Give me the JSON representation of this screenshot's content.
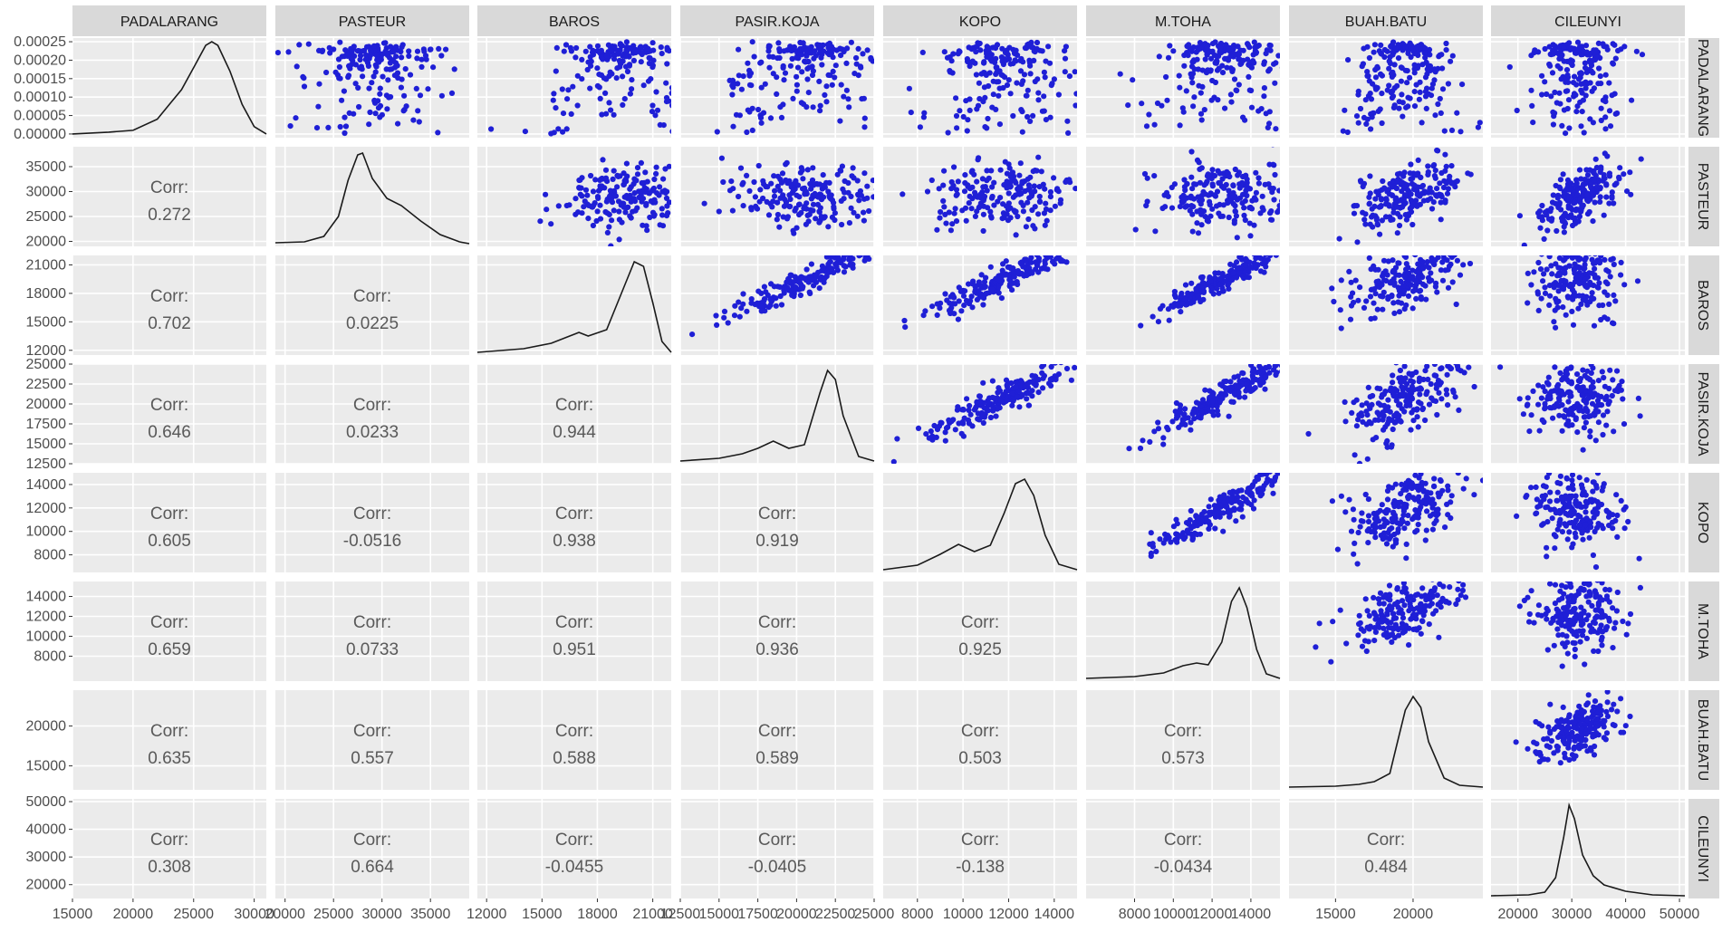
{
  "chart_data": {
    "type": "scatter",
    "variables": [
      "PADALARANG",
      "PASTEUR",
      "BAROS",
      "PASIR.KOJA",
      "KOPO",
      "M.TOHA",
      "BUAH.BATU",
      "CILEUNYI"
    ],
    "panel_types": {
      "diagonal": "density",
      "upper": "scatter",
      "lower": "correlation"
    },
    "corr_label": "Corr:",
    "correlations": [
      {
        "row": "PASTEUR",
        "col": "PADALARANG",
        "value": "0.272"
      },
      {
        "row": "BAROS",
        "col": "PADALARANG",
        "value": "0.702"
      },
      {
        "row": "BAROS",
        "col": "PASTEUR",
        "value": "0.0225"
      },
      {
        "row": "PASIR.KOJA",
        "col": "PADALARANG",
        "value": "0.646"
      },
      {
        "row": "PASIR.KOJA",
        "col": "PASTEUR",
        "value": "0.0233"
      },
      {
        "row": "PASIR.KOJA",
        "col": "BAROS",
        "value": "0.944"
      },
      {
        "row": "KOPO",
        "col": "PADALARANG",
        "value": "0.605"
      },
      {
        "row": "KOPO",
        "col": "PASTEUR",
        "value": "-0.0516"
      },
      {
        "row": "KOPO",
        "col": "BAROS",
        "value": "0.938"
      },
      {
        "row": "KOPO",
        "col": "PASIR.KOJA",
        "value": "0.919"
      },
      {
        "row": "M.TOHA",
        "col": "PADALARANG",
        "value": "0.659"
      },
      {
        "row": "M.TOHA",
        "col": "PASTEUR",
        "value": "0.0733"
      },
      {
        "row": "M.TOHA",
        "col": "BAROS",
        "value": "0.951"
      },
      {
        "row": "M.TOHA",
        "col": "PASIR.KOJA",
        "value": "0.936"
      },
      {
        "row": "M.TOHA",
        "col": "KOPO",
        "value": "0.925"
      },
      {
        "row": "BUAH.BATU",
        "col": "PADALARANG",
        "value": "0.635"
      },
      {
        "row": "BUAH.BATU",
        "col": "PASTEUR",
        "value": "0.557"
      },
      {
        "row": "BUAH.BATU",
        "col": "BAROS",
        "value": "0.588"
      },
      {
        "row": "BUAH.BATU",
        "col": "PASIR.KOJA",
        "value": "0.589"
      },
      {
        "row": "BUAH.BATU",
        "col": "KOPO",
        "value": "0.503"
      },
      {
        "row": "BUAH.BATU",
        "col": "M.TOHA",
        "value": "0.573"
      },
      {
        "row": "CILEUNYI",
        "col": "PADALARANG",
        "value": "0.308"
      },
      {
        "row": "CILEUNYI",
        "col": "PASTEUR",
        "value": "0.664"
      },
      {
        "row": "CILEUNYI",
        "col": "BAROS",
        "value": "-0.0455"
      },
      {
        "row": "CILEUNYI",
        "col": "PASIR.KOJA",
        "value": "-0.0405"
      },
      {
        "row": "CILEUNYI",
        "col": "KOPO",
        "value": "-0.138"
      },
      {
        "row": "CILEUNYI",
        "col": "M.TOHA",
        "value": "-0.0434"
      },
      {
        "row": "CILEUNYI",
        "col": "BUAH.BATU",
        "value": "0.484"
      }
    ],
    "x_axes": [
      {
        "variable": "PADALARANG",
        "range": [
          15000,
          31000
        ],
        "ticks": [
          "15000",
          "20000",
          "25000",
          "30000"
        ]
      },
      {
        "variable": "PASTEUR",
        "range": [
          19000,
          39000
        ],
        "ticks": [
          "20000",
          "25000",
          "30000",
          "35000"
        ]
      },
      {
        "variable": "BAROS",
        "range": [
          11500,
          22000
        ],
        "ticks": [
          "12000",
          "15000",
          "18000",
          "21000"
        ]
      },
      {
        "variable": "PASIR.KOJA",
        "range": [
          12500,
          25000
        ],
        "ticks": [
          "12500",
          "15000",
          "17500",
          "20000",
          "22500",
          "25000"
        ]
      },
      {
        "variable": "KOPO",
        "range": [
          6500,
          15000
        ],
        "ticks": [
          "8000",
          "10000",
          "12000",
          "14000"
        ]
      },
      {
        "variable": "M.TOHA",
        "range": [
          5500,
          15500
        ],
        "ticks": [
          "8000",
          "10000",
          "12000",
          "14000"
        ]
      },
      {
        "variable": "BUAH.BATU",
        "range": [
          12000,
          24500
        ],
        "ticks": [
          "15000",
          "20000"
        ]
      },
      {
        "variable": "CILEUNYI",
        "range": [
          15000,
          51000
        ],
        "ticks": [
          "20000",
          "30000",
          "40000",
          "50000"
        ]
      }
    ],
    "y_axes": [
      {
        "variable": "PADALARANG",
        "range": [
          -1e-05,
          0.00026
        ],
        "ticks": [
          "0.00000",
          "0.00005",
          "0.00010",
          "0.00015",
          "0.00020",
          "0.00025"
        ]
      },
      {
        "variable": "PASTEUR",
        "range": [
          19000,
          39000
        ],
        "ticks": [
          "20000",
          "25000",
          "30000",
          "35000"
        ]
      },
      {
        "variable": "BAROS",
        "range": [
          11500,
          22000
        ],
        "ticks": [
          "12000",
          "15000",
          "18000",
          "21000"
        ]
      },
      {
        "variable": "PASIR.KOJA",
        "range": [
          12500,
          25000
        ],
        "ticks": [
          "12500",
          "15000",
          "17500",
          "20000",
          "22500",
          "25000"
        ]
      },
      {
        "variable": "KOPO",
        "range": [
          6500,
          15000
        ],
        "ticks": [
          "8000",
          "10000",
          "12000",
          "14000"
        ]
      },
      {
        "variable": "M.TOHA",
        "range": [
          5500,
          15500
        ],
        "ticks": [
          "8000",
          "10000",
          "12000",
          "14000"
        ]
      },
      {
        "variable": "BUAH.BATU",
        "range": [
          12000,
          24500
        ],
        "ticks": [
          "15000",
          "20000"
        ]
      },
      {
        "variable": "CILEUNYI",
        "range": [
          15000,
          51000
        ],
        "ticks": [
          "20000",
          "30000",
          "40000",
          "50000"
        ]
      }
    ],
    "densities": [
      {
        "variable": "PADALARANG",
        "x": [
          15000,
          18000,
          20000,
          22000,
          23000,
          24000,
          25000,
          26000,
          26500,
          27000,
          28000,
          29000,
          30000,
          31000
        ],
        "y": [
          0.0,
          5e-06,
          1e-05,
          4e-05,
          8e-05,
          0.00012,
          0.00018,
          0.00024,
          0.00025,
          0.00024,
          0.00017,
          8e-05,
          2e-05,
          0.0
        ]
      },
      {
        "variable": "PASTEUR",
        "x": [
          19000,
          22000,
          24000,
          25500,
          26500,
          27500,
          28000,
          29000,
          30500,
          32000,
          34000,
          36000,
          38000,
          39000
        ],
        "y": [
          0.01,
          0.02,
          0.08,
          0.3,
          0.7,
          0.98,
          1.0,
          0.72,
          0.5,
          0.42,
          0.25,
          0.1,
          0.02,
          0.0
        ]
      },
      {
        "variable": "BAROS",
        "x": [
          11500,
          14000,
          15500,
          16500,
          17000,
          17500,
          18500,
          19500,
          20000,
          20500,
          21000,
          21500,
          22000
        ],
        "y": [
          0.0,
          0.04,
          0.1,
          0.18,
          0.22,
          0.18,
          0.25,
          0.75,
          1.0,
          0.95,
          0.55,
          0.12,
          0.0
        ]
      },
      {
        "variable": "PASIR.KOJA",
        "x": [
          12500,
          15000,
          16500,
          17500,
          18500,
          19500,
          20500,
          21500,
          22000,
          22500,
          23000,
          24000,
          25000
        ],
        "y": [
          0.0,
          0.03,
          0.08,
          0.14,
          0.22,
          0.14,
          0.18,
          0.75,
          1.0,
          0.9,
          0.5,
          0.05,
          0.0
        ]
      },
      {
        "variable": "KOPO",
        "x": [
          6500,
          8000,
          9000,
          9800,
          10500,
          11200,
          11800,
          12300,
          12700,
          13100,
          13600,
          14200,
          15000
        ],
        "y": [
          0.0,
          0.05,
          0.17,
          0.28,
          0.2,
          0.27,
          0.62,
          0.95,
          1.0,
          0.82,
          0.38,
          0.06,
          0.0
        ]
      },
      {
        "variable": "M.TOHA",
        "x": [
          5500,
          8000,
          9500,
          10500,
          11200,
          11800,
          12500,
          13000,
          13400,
          13800,
          14300,
          14800,
          15500
        ],
        "y": [
          0.0,
          0.02,
          0.06,
          0.14,
          0.17,
          0.15,
          0.4,
          0.85,
          1.0,
          0.78,
          0.32,
          0.05,
          0.0
        ]
      },
      {
        "variable": "BUAH.BATU",
        "x": [
          12000,
          15000,
          16500,
          17500,
          18500,
          19000,
          19500,
          20000,
          20500,
          21000,
          22000,
          23000,
          24500
        ],
        "y": [
          0.0,
          0.01,
          0.03,
          0.06,
          0.15,
          0.5,
          0.85,
          1.0,
          0.88,
          0.5,
          0.1,
          0.02,
          0.0
        ]
      },
      {
        "variable": "CILEUNYI",
        "x": [
          15000,
          22000,
          25000,
          27000,
          28500,
          29500,
          30500,
          32000,
          34000,
          36000,
          40000,
          45000,
          51000
        ],
        "y": [
          0.0,
          0.01,
          0.04,
          0.2,
          0.65,
          1.0,
          0.85,
          0.45,
          0.22,
          0.12,
          0.05,
          0.01,
          0.0
        ]
      }
    ],
    "point_color": "#1f1fd6",
    "strip_background": "#d9d9d9",
    "panel_background": "#ebebeb",
    "grid": true
  }
}
